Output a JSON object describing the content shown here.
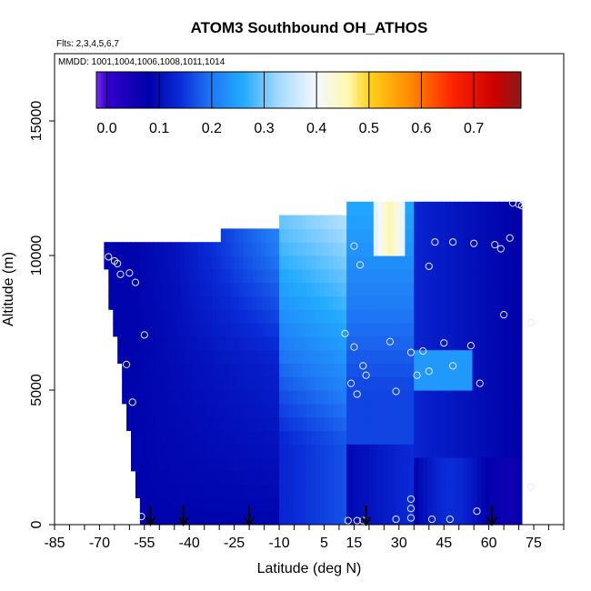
{
  "chart_data": {
    "type": "heatmap",
    "title": "ATOM3 Southbound OH_ATHOS",
    "flights_note": "Flts: 2,3,4,5,6,7",
    "dates_note": "MMDD: 1001,1004,1006,1008,1011,1014",
    "xlabel": "Latitude (deg N)",
    "ylabel": "Altitude (m)",
    "xlim": [
      -85,
      85
    ],
    "ylim": [
      0,
      17500
    ],
    "x_ticks": [
      -85,
      -70,
      -55,
      -40,
      -25,
      -10,
      5,
      15,
      30,
      45,
      60,
      75
    ],
    "y_ticks": [
      0,
      5000,
      10000,
      15000
    ],
    "colorbar": {
      "ticks": [
        0.0,
        0.1,
        0.2,
        0.3,
        0.4,
        0.5,
        0.6,
        0.7
      ],
      "tick_labels": [
        "0.0",
        "0.1",
        "0.2",
        "0.3",
        "0.4",
        "0.5",
        "0.6",
        "0.7"
      ],
      "range": [
        -0.02,
        0.79
      ],
      "stops": [
        {
          "v": -0.02,
          "c": "#7b2ff0"
        },
        {
          "v": 0.0,
          "c": "#3300cc"
        },
        {
          "v": 0.08,
          "c": "#0000a8"
        },
        {
          "v": 0.14,
          "c": "#0a2bd8"
        },
        {
          "v": 0.2,
          "c": "#1f78f5"
        },
        {
          "v": 0.26,
          "c": "#22aaff"
        },
        {
          "v": 0.33,
          "c": "#a8dcff"
        },
        {
          "v": 0.4,
          "c": "#f4f8ff"
        },
        {
          "v": 0.46,
          "c": "#fff8b0"
        },
        {
          "v": 0.5,
          "c": "#ffd21a"
        },
        {
          "v": 0.58,
          "c": "#ff8800"
        },
        {
          "v": 0.66,
          "c": "#ff2200"
        },
        {
          "v": 0.74,
          "c": "#cc0000"
        },
        {
          "v": 0.79,
          "c": "#8b1a1a"
        }
      ]
    },
    "colors": {
      "marker_edge": "#e8e8ff",
      "axis": "#000000"
    },
    "profile_arrows_lat": [
      -53,
      -42,
      -20,
      19,
      61
    ],
    "sample_points": [
      {
        "lat": -67,
        "alt": 9950
      },
      {
        "lat": -65,
        "alt": 9800
      },
      {
        "lat": -64,
        "alt": 9700
      },
      {
        "lat": -63,
        "alt": 9300
      },
      {
        "lat": -60,
        "alt": 9350
      },
      {
        "lat": -58,
        "alt": 9000
      },
      {
        "lat": -55,
        "alt": 7050
      },
      {
        "lat": -61,
        "alt": 5950
      },
      {
        "lat": -59,
        "alt": 4550
      },
      {
        "lat": -56,
        "alt": 300
      },
      {
        "lat": 15,
        "alt": 10350
      },
      {
        "lat": 17,
        "alt": 9650
      },
      {
        "lat": 40,
        "alt": 9600
      },
      {
        "lat": 42,
        "alt": 10500
      },
      {
        "lat": 48,
        "alt": 10500
      },
      {
        "lat": 55,
        "alt": 10450
      },
      {
        "lat": 62,
        "alt": 10400
      },
      {
        "lat": 64,
        "alt": 10250
      },
      {
        "lat": 67,
        "alt": 10650
      },
      {
        "lat": 68,
        "alt": 11950
      },
      {
        "lat": 70,
        "alt": 11900
      },
      {
        "lat": 71,
        "alt": 11850
      },
      {
        "lat": 65,
        "alt": 7800
      },
      {
        "lat": 74,
        "alt": 7500
      },
      {
        "lat": 12,
        "alt": 7100
      },
      {
        "lat": 15,
        "alt": 6600
      },
      {
        "lat": 27,
        "alt": 6800
      },
      {
        "lat": 34,
        "alt": 6400
      },
      {
        "lat": 38,
        "alt": 6450
      },
      {
        "lat": 45,
        "alt": 6750
      },
      {
        "lat": 54,
        "alt": 6650
      },
      {
        "lat": 18,
        "alt": 5900
      },
      {
        "lat": 19,
        "alt": 5550
      },
      {
        "lat": 36,
        "alt": 5550
      },
      {
        "lat": 40,
        "alt": 5700
      },
      {
        "lat": 48,
        "alt": 5900
      },
      {
        "lat": 57,
        "alt": 5250
      },
      {
        "lat": 14,
        "alt": 5250
      },
      {
        "lat": 16,
        "alt": 4850
      },
      {
        "lat": 29,
        "alt": 4950
      },
      {
        "lat": 34,
        "alt": 950
      },
      {
        "lat": 34,
        "alt": 600
      },
      {
        "lat": 56,
        "alt": 500
      },
      {
        "lat": 74,
        "alt": 1400
      },
      {
        "lat": 13,
        "alt": 150
      },
      {
        "lat": 16,
        "alt": 150
      },
      {
        "lat": 18,
        "alt": 150
      },
      {
        "lat": 29,
        "alt": 200
      },
      {
        "lat": 34,
        "alt": 250
      },
      {
        "lat": 41,
        "alt": 200
      },
      {
        "lat": 47,
        "alt": 200
      }
    ]
  }
}
